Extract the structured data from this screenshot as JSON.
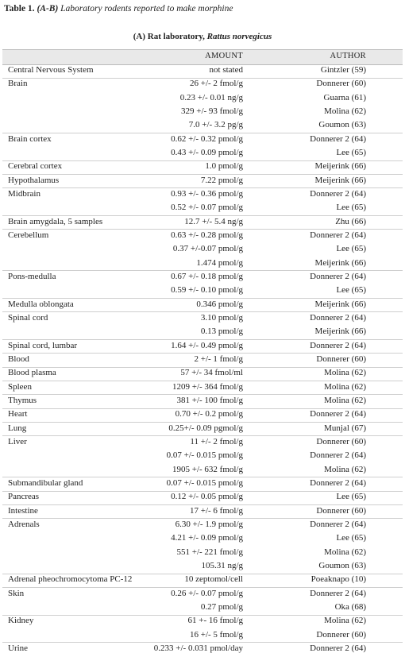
{
  "header": {
    "label": "Table 1.",
    "parts": "(A-B)",
    "title": "Laboratory rodents reported to make morphine"
  },
  "section": {
    "title": "(A) Rat laboratory,",
    "species": "Rattus norvegicus"
  },
  "table": {
    "columns": [
      "AMOUNT",
      "AUTHOR"
    ],
    "groups": [
      {
        "tissue": "Central Nervous System",
        "entries": [
          [
            "not stated",
            "Gintzler (59)"
          ]
        ]
      },
      {
        "tissue": "Brain",
        "entries": [
          [
            "26 +/- 2 fmol/g",
            "Donnerer (60)"
          ],
          [
            "0.23 +/- 0.01 ng/g",
            "Guarna (61)"
          ],
          [
            "329 +/- 93 fmol/g",
            "Molina (62)"
          ],
          [
            "7.0 +/- 3.2 pg/g",
            "Goumon (63)"
          ]
        ]
      },
      {
        "tissue": "Brain cortex",
        "entries": [
          [
            "0.62 +/- 0.32 pmol/g",
            "Donnerer 2 (64)"
          ],
          [
            "0.43 +/- 0.09 pmol/g",
            "Lee (65)"
          ]
        ]
      },
      {
        "tissue": "Cerebral cortex",
        "entries": [
          [
            "1.0 pmol/g",
            "Meijerink (66)"
          ]
        ]
      },
      {
        "tissue": "Hypothalamus",
        "entries": [
          [
            "7.22 pmol/g",
            "Meijerink (66)"
          ]
        ]
      },
      {
        "tissue": "Midbrain",
        "entries": [
          [
            "0.93 +/- 0.36 pmol/g",
            "Donnerer 2 (64)"
          ],
          [
            "0.52 +/- 0.07 pmol/g",
            "Lee (65)"
          ]
        ]
      },
      {
        "tissue": "Brain amygdala, 5 samples",
        "entries": [
          [
            "12.7 +/- 5.4 ng/g",
            "Zhu (66)"
          ]
        ]
      },
      {
        "tissue": "Cerebellum",
        "entries": [
          [
            "0.63 +/- 0.28 pmol/g",
            "Donnerer 2 (64)"
          ],
          [
            "0.37 +/-0.07 pmol/g",
            "Lee (65)"
          ],
          [
            "1.474 pmol/g",
            "Meijerink (66)"
          ]
        ]
      },
      {
        "tissue": "Pons-medulla",
        "entries": [
          [
            "0.67 +/- 0.18 pmol/g",
            "Donnerer 2 (64)"
          ],
          [
            "0.59 +/- 0.10 pmol/g",
            "Lee (65)"
          ]
        ]
      },
      {
        "tissue": "Medulla oblongata",
        "entries": [
          [
            "0.346 pmol/g",
            "Meijerink (66)"
          ]
        ]
      },
      {
        "tissue": "Spinal cord",
        "entries": [
          [
            "3.10 pmol/g",
            "Donnerer 2 (64)"
          ],
          [
            "0.13 pmol/g",
            "Meijerink (66)"
          ]
        ]
      },
      {
        "tissue": "Spinal cord, lumbar",
        "entries": [
          [
            "1.64 +/- 0.49 pmol/g",
            "Donnerer 2 (64)"
          ]
        ]
      },
      {
        "tissue": "Blood",
        "entries": [
          [
            "2 +/- 1 fmol/g",
            "Donnerer (60)"
          ]
        ]
      },
      {
        "tissue": "Blood plasma",
        "entries": [
          [
            "57 +/- 34 fmol/ml",
            "Molina (62)"
          ]
        ]
      },
      {
        "tissue": "Spleen",
        "entries": [
          [
            "1209 +/- 364 fmol/g",
            "Molina (62)"
          ]
        ]
      },
      {
        "tissue": "Thymus",
        "entries": [
          [
            "381 +/- 100 fmol/g",
            "Molina (62)"
          ]
        ]
      },
      {
        "tissue": "Heart",
        "entries": [
          [
            "0.70 +/- 0.2 pmol/g",
            "Donnerer 2 (64)"
          ]
        ]
      },
      {
        "tissue": "Lung",
        "entries": [
          [
            "0.25+/- 0.09 pgmol/g",
            "Munjal (67)"
          ]
        ]
      },
      {
        "tissue": "Liver",
        "entries": [
          [
            "11 +/- 2 fmol/g",
            "Donnerer (60)"
          ],
          [
            "0.07 +/- 0.015 pmol/g",
            "Donnerer 2 (64)"
          ],
          [
            "1905 +/- 632 fmol/g",
            "Molina (62)"
          ]
        ]
      },
      {
        "tissue": "Submandibular gland",
        "entries": [
          [
            "0.07 +/- 0.015 pmol/g",
            "Donnerer 2 (64)"
          ]
        ]
      },
      {
        "tissue": "Pancreas",
        "entries": [
          [
            "0.12 +/- 0.05 pmol/g",
            "Lee (65)"
          ]
        ]
      },
      {
        "tissue": "Intestine",
        "entries": [
          [
            "17 +/- 6 fmol/g",
            "Donnerer (60)"
          ]
        ]
      },
      {
        "tissue": "Adrenals",
        "entries": [
          [
            "6.30 +/- 1.9 pmol/g",
            "Donnerer 2 (64)"
          ],
          [
            "4.21 +/- 0.09 pmol/g",
            "Lee (65)"
          ],
          [
            "551 +/- 221 fmol/g",
            "Molina (62)"
          ],
          [
            "105.31 ng/g",
            "Goumon (63)"
          ]
        ]
      },
      {
        "tissue": "Adrenal pheochromocytoma PC-12",
        "entries": [
          [
            "10 zeptomol/cell",
            "Poeaknapo (10)"
          ]
        ]
      },
      {
        "tissue": "Skin",
        "entries": [
          [
            "0.26 +/- 0.07 pmol/g",
            "Donnerer 2 (64)"
          ],
          [
            "0.27 pmol/g",
            "Oka (68)"
          ]
        ]
      },
      {
        "tissue": "Kidney",
        "entries": [
          [
            "61 +- 16 fmol/g",
            "Molina (62)"
          ],
          [
            "16 +/- 5 fmol/g",
            "Donnerer (60)"
          ]
        ]
      },
      {
        "tissue": "Urine",
        "entries": [
          [
            "0.233 +/- 0.031 pmol/day",
            "Donnerer 2 (64)"
          ]
        ]
      }
    ]
  }
}
